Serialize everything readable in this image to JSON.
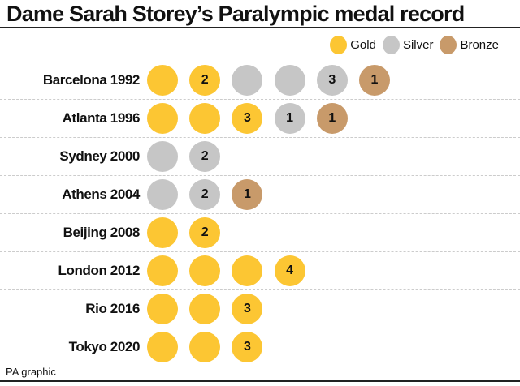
{
  "chart_data": {
    "type": "table",
    "title": "Dame Sarah Storey’s Paralympic medal record",
    "legend": [
      {
        "name": "Gold",
        "color": "#FCC633"
      },
      {
        "name": "Silver",
        "color": "#C6C6C6"
      },
      {
        "name": "Bronze",
        "color": "#C89A6A"
      }
    ],
    "legend_placement": "top-right",
    "rows": [
      {
        "games": "Barcelona 1992",
        "medals": [
          {
            "type": "Gold",
            "label": ""
          },
          {
            "type": "Gold",
            "label": "2"
          },
          {
            "type": "Silver",
            "label": ""
          },
          {
            "type": "Silver",
            "label": ""
          },
          {
            "type": "Silver",
            "label": "3"
          },
          {
            "type": "Bronze",
            "label": "1"
          }
        ]
      },
      {
        "games": "Atlanta 1996",
        "medals": [
          {
            "type": "Gold",
            "label": ""
          },
          {
            "type": "Gold",
            "label": ""
          },
          {
            "type": "Gold",
            "label": "3"
          },
          {
            "type": "Silver",
            "label": "1"
          },
          {
            "type": "Bronze",
            "label": "1"
          }
        ]
      },
      {
        "games": "Sydney 2000",
        "medals": [
          {
            "type": "Silver",
            "label": ""
          },
          {
            "type": "Silver",
            "label": "2"
          }
        ]
      },
      {
        "games": "Athens 2004",
        "medals": [
          {
            "type": "Silver",
            "label": ""
          },
          {
            "type": "Silver",
            "label": "2"
          },
          {
            "type": "Bronze",
            "label": "1"
          }
        ]
      },
      {
        "games": "Beijing 2008",
        "medals": [
          {
            "type": "Gold",
            "label": ""
          },
          {
            "type": "Gold",
            "label": "2"
          }
        ]
      },
      {
        "games": "London 2012",
        "medals": [
          {
            "type": "Gold",
            "label": ""
          },
          {
            "type": "Gold",
            "label": ""
          },
          {
            "type": "Gold",
            "label": ""
          },
          {
            "type": "Gold",
            "label": "4"
          }
        ]
      },
      {
        "games": "Rio 2016",
        "medals": [
          {
            "type": "Gold",
            "label": ""
          },
          {
            "type": "Gold",
            "label": ""
          },
          {
            "type": "Gold",
            "label": "3"
          }
        ]
      },
      {
        "games": "Tokyo 2020",
        "medals": [
          {
            "type": "Gold",
            "label": ""
          },
          {
            "type": "Gold",
            "label": ""
          },
          {
            "type": "Gold",
            "label": "3"
          }
        ]
      }
    ]
  },
  "footer": "PA graphic"
}
